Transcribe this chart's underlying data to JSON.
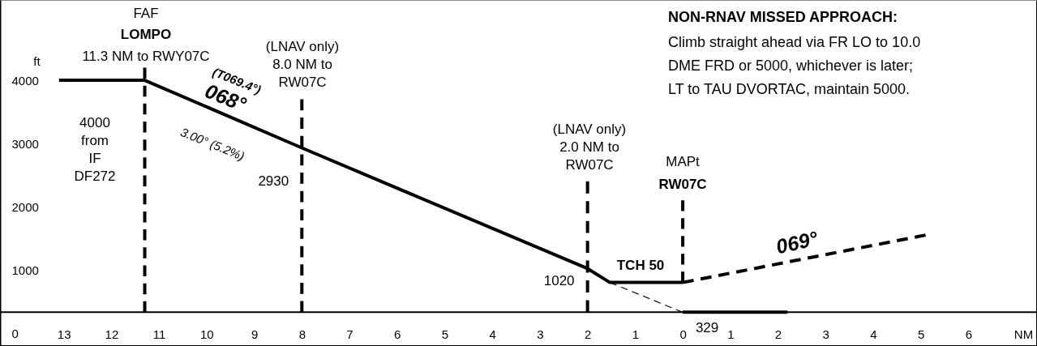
{
  "chart_data": {
    "type": "line",
    "title": "NON-RNAV MISSED APPROACH:",
    "subtitle": "Climb straight ahead via FR LO to 10.0\nDME FRD or 5000, whichever is later;\nLT to TAU DVORTAC, maintain 5000.",
    "ylabel": "ft",
    "xlabel": "NM",
    "xlim": [
      -14.34,
      7.44
    ],
    "ylim": [
      -205,
      5270
    ],
    "xticks": [
      {
        "value": -13,
        "label": "13"
      },
      {
        "value": -12,
        "label": "12"
      },
      {
        "value": -11,
        "label": "11"
      },
      {
        "value": -10,
        "label": "10"
      },
      {
        "value": -9,
        "label": "9"
      },
      {
        "value": -8,
        "label": "8"
      },
      {
        "value": -7,
        "label": "7"
      },
      {
        "value": -6,
        "label": "6"
      },
      {
        "value": -5,
        "label": "5"
      },
      {
        "value": -4,
        "label": "4"
      },
      {
        "value": -3,
        "label": "3"
      },
      {
        "value": -2,
        "label": "2"
      },
      {
        "value": -1,
        "label": "1"
      },
      0,
      1,
      2,
      3,
      4,
      5,
      6
    ],
    "yticks": [
      0,
      1000,
      2000,
      3000,
      4000
    ],
    "ref_lines": [
      {
        "axis": "y",
        "value": 329
      }
    ],
    "series": [
      {
        "color": "#000000",
        "line_style": "solid",
        "x": [
          -13.1,
          -11.3,
          -8,
          -2,
          -1.53,
          0
        ],
        "values": [
          4000,
          4000,
          2930,
          1020,
          800,
          800
        ]
      },
      {
        "color": "#000000",
        "line_style": "dashed",
        "x": [
          -1.53,
          0
        ],
        "values": [
          800,
          329
        ]
      },
      {
        "color": "#000000",
        "line_style": "dashed",
        "x": [
          0,
          5.1
        ],
        "values": [
          800,
          1550
        ]
      },
      {
        "color": "#000000",
        "line_style": "solid",
        "x": [
          0,
          2.2
        ],
        "values": [
          329,
          329
        ]
      },
      {
        "color": "#000000",
        "line_style": "dashed",
        "x": [
          -11.3,
          -11.3
        ],
        "values": [
          4200,
          329
        ]
      },
      {
        "color": "#000000",
        "line_style": "dashed",
        "x": [
          -8,
          -8
        ],
        "values": [
          3700,
          329
        ]
      },
      {
        "color": "#000000",
        "line_style": "dashed",
        "x": [
          -2,
          -2
        ],
        "values": [
          2400,
          329
        ]
      },
      {
        "color": "#000000",
        "line_style": "dashed",
        "x": [
          0,
          0
        ],
        "values": [
          2100,
          800
        ]
      }
    ],
    "annotations": [
      "FAF",
      "LOMPO",
      "11.3 NM to RWY07C",
      "(LNAV only)\n8.0 NM to\nRW07C",
      "4000\nfrom\nIF\nDF272",
      "(T069.4°)",
      "068°",
      "3.00° (5.2%)",
      {
        "text": "2930",
        "x": -8,
        "y": 2930
      },
      "(LNAV only)\n2.0 NM to\nRW07C",
      {
        "text": "1020",
        "x": -2,
        "y": 1020
      },
      "MAPt",
      "RW07C",
      "TCH 50",
      "069°",
      {
        "text": "329",
        "x": 0,
        "y": 329
      }
    ]
  }
}
